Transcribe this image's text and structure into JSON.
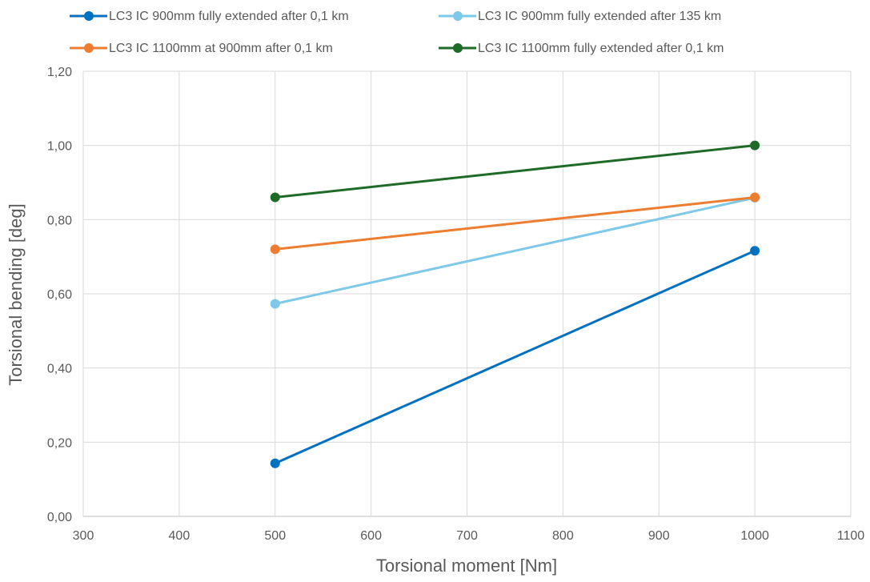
{
  "chart_data": {
    "type": "line",
    "title": "",
    "xlabel": "Torsional moment [Nm]",
    "ylabel": "Torsional bending [deg]",
    "xlim": [
      300,
      1100
    ],
    "ylim": [
      0,
      1.2
    ],
    "x_ticks": [
      300,
      400,
      500,
      600,
      700,
      800,
      900,
      1000,
      1100
    ],
    "x_tick_labels": [
      "300",
      "400",
      "500",
      "600",
      "700",
      "800",
      "900",
      "1000",
      "1100"
    ],
    "y_ticks": [
      0,
      0.2,
      0.4,
      0.6,
      0.8,
      1.0,
      1.2
    ],
    "y_tick_labels": [
      "0,00",
      "0,20",
      "0,40",
      "0,60",
      "0,80",
      "1,00",
      "1,20"
    ],
    "grid": true,
    "legend_position": "top",
    "series": [
      {
        "name": "LC3 IC 900mm fully extended after 0,1 km",
        "color": "#0070C0",
        "x": [
          500,
          1000
        ],
        "y": [
          0.143,
          0.716
        ]
      },
      {
        "name": "LC3 IC 900mm fully extended after 135 km",
        "color": "#7EC8E8",
        "x": [
          500,
          1000
        ],
        "y": [
          0.573,
          0.859
        ]
      },
      {
        "name": "LC3 IC 1100mm at 900mm after 0,1 km",
        "color": "#ED7D31",
        "x": [
          500,
          1000
        ],
        "y": [
          0.72,
          0.86
        ]
      },
      {
        "name": "LC3 IC 1100mm fully extended after 0,1 km",
        "color": "#1E6B27",
        "x": [
          500,
          1000
        ],
        "y": [
          0.86,
          1.0
        ]
      }
    ]
  }
}
